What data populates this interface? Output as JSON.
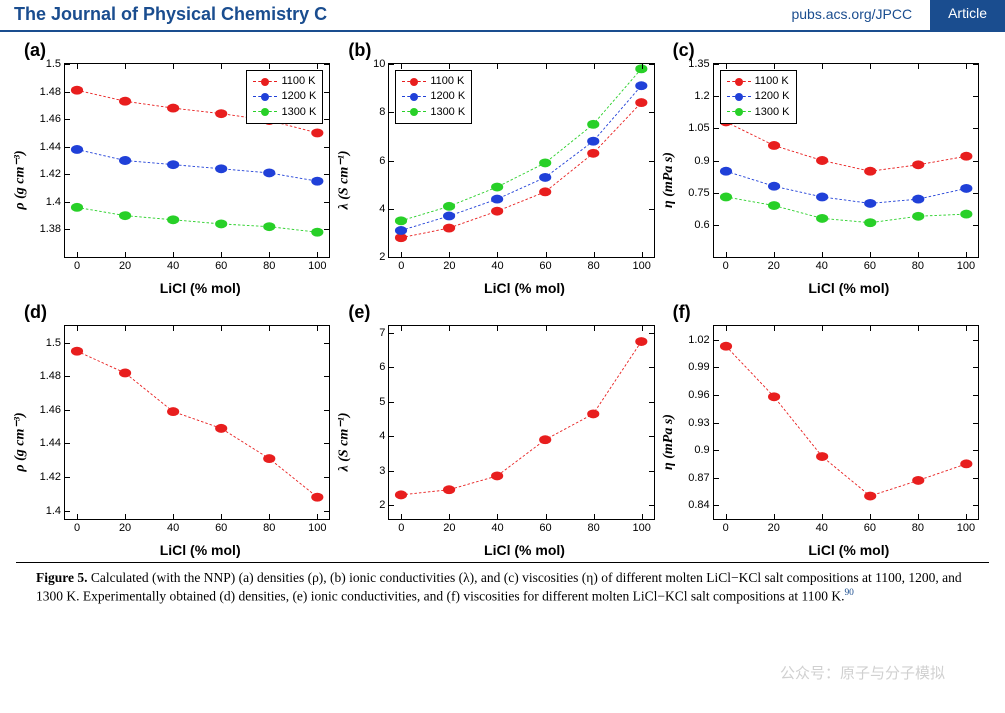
{
  "header": {
    "journal": "The Journal of Physical Chemistry C",
    "link": "pubs.acs.org/JPCC",
    "badge": "Article"
  },
  "colors": {
    "s1100": "#e81e1e",
    "s1200": "#2040d8",
    "s1300": "#28d028",
    "header_blue": "#1a4d8f"
  },
  "common": {
    "xlabel": "LiCl (% mol)",
    "xvalues": [
      0,
      20,
      40,
      60,
      80,
      100
    ],
    "xlim": [
      -5,
      105
    ],
    "legend_labels": [
      "1100 K",
      "1200 K",
      "1300 K"
    ]
  },
  "panels": {
    "a": {
      "label": "(a)",
      "ylabel": "ρ (g cm⁻³)",
      "ylim": [
        1.36,
        1.5
      ],
      "yticks": [
        1.38,
        1.4,
        1.42,
        1.44,
        1.46,
        1.48,
        1.5
      ],
      "legend_pos": "top-right",
      "series": [
        {
          "color": "#e81e1e",
          "y": [
            1.481,
            1.473,
            1.468,
            1.464,
            1.459,
            1.45
          ]
        },
        {
          "color": "#2040d8",
          "y": [
            1.438,
            1.43,
            1.427,
            1.424,
            1.421,
            1.415
          ]
        },
        {
          "color": "#28d028",
          "y": [
            1.396,
            1.39,
            1.387,
            1.384,
            1.382,
            1.378
          ]
        }
      ]
    },
    "b": {
      "label": "(b)",
      "ylabel": "λ (S cm⁻¹)",
      "ylim": [
        2,
        10
      ],
      "yticks": [
        2,
        4,
        6,
        8,
        10
      ],
      "legend_pos": "top-left",
      "series": [
        {
          "color": "#e81e1e",
          "y": [
            2.8,
            3.2,
            3.9,
            4.7,
            6.3,
            8.4
          ]
        },
        {
          "color": "#2040d8",
          "y": [
            3.1,
            3.7,
            4.4,
            5.3,
            6.8,
            9.1
          ]
        },
        {
          "color": "#28d028",
          "y": [
            3.5,
            4.1,
            4.9,
            5.9,
            7.5,
            9.8
          ]
        }
      ]
    },
    "c": {
      "label": "(c)",
      "ylabel": "η (mPa s)",
      "ylim": [
        0.45,
        1.35
      ],
      "yticks": [
        0.6,
        0.75,
        0.9,
        1.05,
        1.2,
        1.35
      ],
      "legend_pos": "top-left",
      "series": [
        {
          "color": "#e81e1e",
          "y": [
            1.08,
            0.97,
            0.9,
            0.85,
            0.88,
            0.92
          ]
        },
        {
          "color": "#2040d8",
          "y": [
            0.85,
            0.78,
            0.73,
            0.7,
            0.72,
            0.77
          ]
        },
        {
          "color": "#28d028",
          "y": [
            0.73,
            0.69,
            0.63,
            0.61,
            0.64,
            0.65
          ]
        }
      ]
    },
    "d": {
      "label": "(d)",
      "ylabel": "ρ (g cm⁻³)",
      "ylim": [
        1.395,
        1.51
      ],
      "yticks": [
        1.4,
        1.42,
        1.44,
        1.46,
        1.48,
        1.5
      ],
      "legend_pos": null,
      "series": [
        {
          "color": "#e81e1e",
          "y": [
            1.495,
            1.482,
            1.459,
            1.449,
            1.431,
            1.408
          ]
        }
      ]
    },
    "e": {
      "label": "(e)",
      "ylabel": "λ (S cm⁻¹)",
      "ylim": [
        1.6,
        7.2
      ],
      "yticks": [
        2,
        3,
        4,
        5,
        6,
        7
      ],
      "legend_pos": null,
      "series": [
        {
          "color": "#e81e1e",
          "y": [
            2.3,
            2.45,
            2.85,
            3.9,
            4.65,
            6.75
          ]
        }
      ]
    },
    "f": {
      "label": "(f)",
      "ylabel": "η (mPa s)",
      "ylim": [
        0.825,
        1.035
      ],
      "yticks": [
        0.84,
        0.87,
        0.9,
        0.93,
        0.96,
        0.99,
        1.02
      ],
      "legend_pos": null,
      "series": [
        {
          "color": "#e81e1e",
          "y": [
            1.013,
            0.958,
            0.893,
            0.85,
            0.867,
            0.885
          ]
        }
      ]
    }
  },
  "caption": {
    "prefix": "Figure 5.",
    "text": " Calculated (with the NNP) (a) densities (ρ), (b) ionic conductivities (λ), and (c) viscosities (η) of different molten LiCl−KCl salt compositions at 1100, 1200, and 1300 K. Experimentally obtained (d) densities, (e) ionic conductivities, and (f) viscosities for different molten LiCl−KCl salt compositions at 1100 K.",
    "ref": "90"
  },
  "watermark": "公众号：原子与分子模拟"
}
